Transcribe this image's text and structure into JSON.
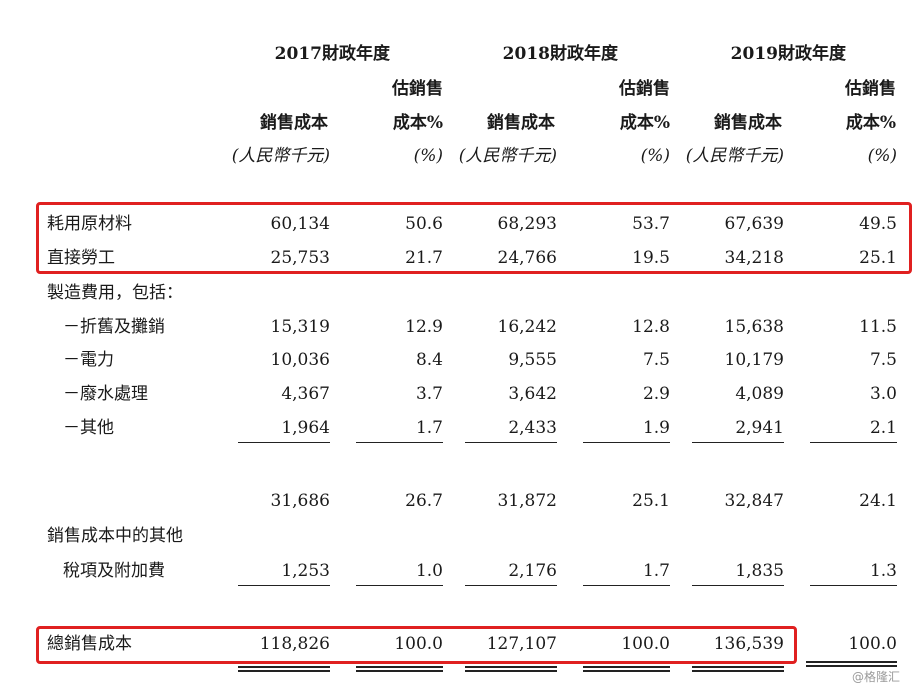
{
  "years": [
    "2017財政年度",
    "2018財政年度",
    "2019財政年度"
  ],
  "headers": {
    "est_line1": "估銷售",
    "est_line2": "成本%",
    "cost_label": "銷售成本",
    "unit_rmb": "(人民幣千元)",
    "unit_pct": "(%)"
  },
  "rows": {
    "materials": {
      "label": "耗用原材料",
      "values": [
        "60,134",
        "50.6",
        "68,293",
        "53.7",
        "67,639",
        "49.5"
      ]
    },
    "labor": {
      "label": "直接勞工",
      "values": [
        "25,753",
        "21.7",
        "24,766",
        "19.5",
        "34,218",
        "25.1"
      ]
    },
    "manufacturing": {
      "label": "製造費用，包括："
    },
    "depreciation": {
      "label": "－折舊及攤銷",
      "values": [
        "15,319",
        "12.9",
        "16,242",
        "12.8",
        "15,638",
        "11.5"
      ]
    },
    "electricity": {
      "label": "－電力",
      "values": [
        "10,036",
        "8.4",
        "9,555",
        "7.5",
        "10,179",
        "7.5"
      ]
    },
    "wastewater": {
      "label": "－廢水處理",
      "values": [
        "4,367",
        "3.7",
        "3,642",
        "2.9",
        "4,089",
        "3.0"
      ]
    },
    "others": {
      "label": "－其他",
      "values": [
        "1,964",
        "1.7",
        "2,433",
        "1.9",
        "2,941",
        "2.1"
      ]
    },
    "subtotal": {
      "values": [
        "31,686",
        "26.7",
        "31,872",
        "25.1",
        "32,847",
        "24.1"
      ]
    },
    "other_costs": {
      "label": "銷售成本中的其他"
    },
    "taxes": {
      "label": "稅項及附加費",
      "values": [
        "1,253",
        "1.0",
        "2,176",
        "1.7",
        "1,835",
        "1.3"
      ]
    },
    "total": {
      "label": "總銷售成本",
      "values": [
        "118,826",
        "100.0",
        "127,107",
        "100.0",
        "136,539",
        "100.0"
      ]
    }
  },
  "watermark": "@格隆汇"
}
